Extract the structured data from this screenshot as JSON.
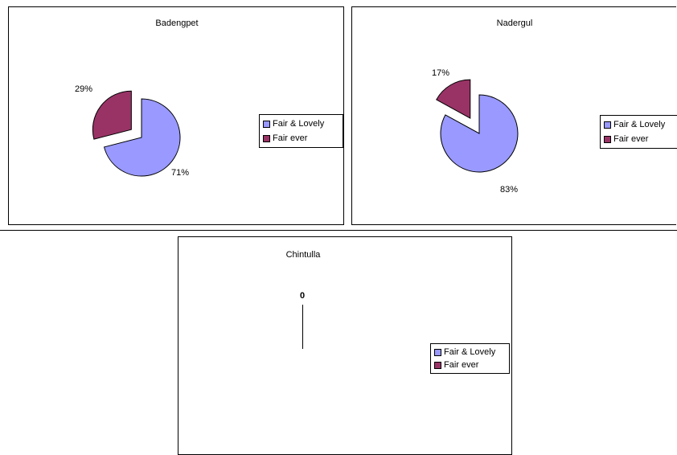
{
  "colors": {
    "fair_lovely": "#9999ff",
    "fair_ever": "#993366",
    "border": "#000000"
  },
  "chart_data": [
    {
      "type": "pie",
      "title": "Badengpet",
      "categories": [
        "Fair & Lovely",
        "Fair ever"
      ],
      "values": [
        71,
        29
      ],
      "data_labels": [
        "71%",
        "29%"
      ],
      "exploded": "Fair ever",
      "legend": "right"
    },
    {
      "type": "pie",
      "title": "Nadergul",
      "categories": [
        "Fair & Lovely",
        "Fair ever"
      ],
      "values": [
        83,
        17
      ],
      "data_labels": [
        "83%",
        "17%"
      ],
      "exploded": "Fair ever",
      "legend": "right"
    },
    {
      "type": "pie",
      "title": "Chintulla",
      "categories": [
        "Fair & Lovely",
        "Fair ever"
      ],
      "values": [
        0,
        0
      ],
      "data_labels": [
        "0"
      ],
      "legend": "right"
    }
  ],
  "legend_labels": [
    "Fair & Lovely",
    "Fair ever"
  ]
}
